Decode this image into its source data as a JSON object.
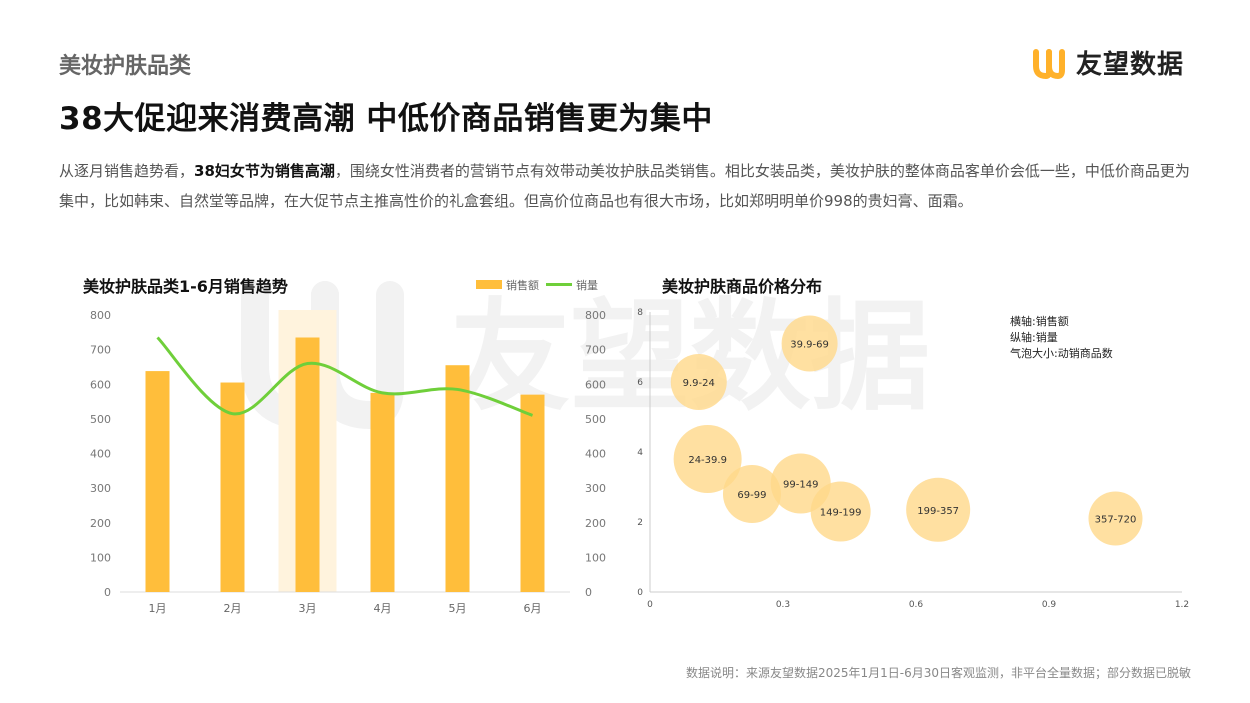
{
  "header": {
    "category": "美妆护肤品类",
    "brand": "友望数据"
  },
  "headline": "38大促迎来消费高潮  中低价商品销售更为集中",
  "intro": {
    "part1": "从逐月销售趋势看，",
    "bold1": "38妇女节为销售高潮",
    "part2": "，围绕女性消费者的营销节点有效带动美妆护肤品类销售。相比女装品类，美妆护肤的整体商品客单价会低一些，中低价商品更为集中，比如韩束、自然堂等品牌，在大促节点主推高性价的礼盒套组。但高价位商品也有很大市场，比如郑明明单价998的贵妇膏、面霜。"
  },
  "watermark": "友望数据",
  "colors": {
    "bar": "#FFBE3B",
    "line": "#6FCF3A",
    "highlight": "#FFF3DD",
    "bubble": "#FFD88A"
  },
  "chart_data": [
    {
      "type": "bar",
      "title": "美妆护肤品类1-6月销售趋势",
      "categories": [
        "1月",
        "2月",
        "3月",
        "4月",
        "5月",
        "6月"
      ],
      "series": [
        {
          "name": "销售额",
          "kind": "bar",
          "values": [
            638,
            605,
            735,
            575,
            655,
            570
          ]
        },
        {
          "name": "销量",
          "kind": "line",
          "values": [
            735,
            515,
            660,
            575,
            585,
            510
          ]
        }
      ],
      "ylim": [
        0,
        800
      ],
      "yticks": [
        "0",
        "100",
        "200",
        "300",
        "400",
        "500",
        "600",
        "700",
        "800"
      ],
      "y2ticks": [
        "0",
        "100",
        "200",
        "300",
        "400",
        "500",
        "600",
        "700",
        "800"
      ],
      "highlight_category": "3月",
      "legend_position": "top-right"
    },
    {
      "type": "scatter",
      "subtype": "bubble",
      "title": "美妆护肤商品价格分布",
      "xlim": [
        0,
        1.2
      ],
      "ylim": [
        0,
        8
      ],
      "xticks": [
        "0",
        "0.3",
        "0.6",
        "0.9",
        "1.2"
      ],
      "yticks": [
        "0",
        "2",
        "4",
        "6",
        "8"
      ],
      "notes": [
        "横轴:销售额",
        "纵轴:销量",
        "气泡大小:动销商品数"
      ],
      "points": [
        {
          "label": "9.9-24",
          "x": 0.11,
          "y": 6.0,
          "size": 28
        },
        {
          "label": "39.9-69",
          "x": 0.36,
          "y": 7.1,
          "size": 28
        },
        {
          "label": "24-39.9",
          "x": 0.13,
          "y": 3.8,
          "size": 34
        },
        {
          "label": "69-99",
          "x": 0.23,
          "y": 2.8,
          "size": 29
        },
        {
          "label": "99-149",
          "x": 0.34,
          "y": 3.1,
          "size": 30
        },
        {
          "label": "149-199",
          "x": 0.43,
          "y": 2.3,
          "size": 30
        },
        {
          "label": "199-357",
          "x": 0.65,
          "y": 2.35,
          "size": 32
        },
        {
          "label": "357-720",
          "x": 1.05,
          "y": 2.1,
          "size": 27
        }
      ]
    }
  ],
  "footer": "数据说明：来源友望数据2025年1月1日-6月30日客观监测，非平台全量数据；部分数据已脱敏"
}
